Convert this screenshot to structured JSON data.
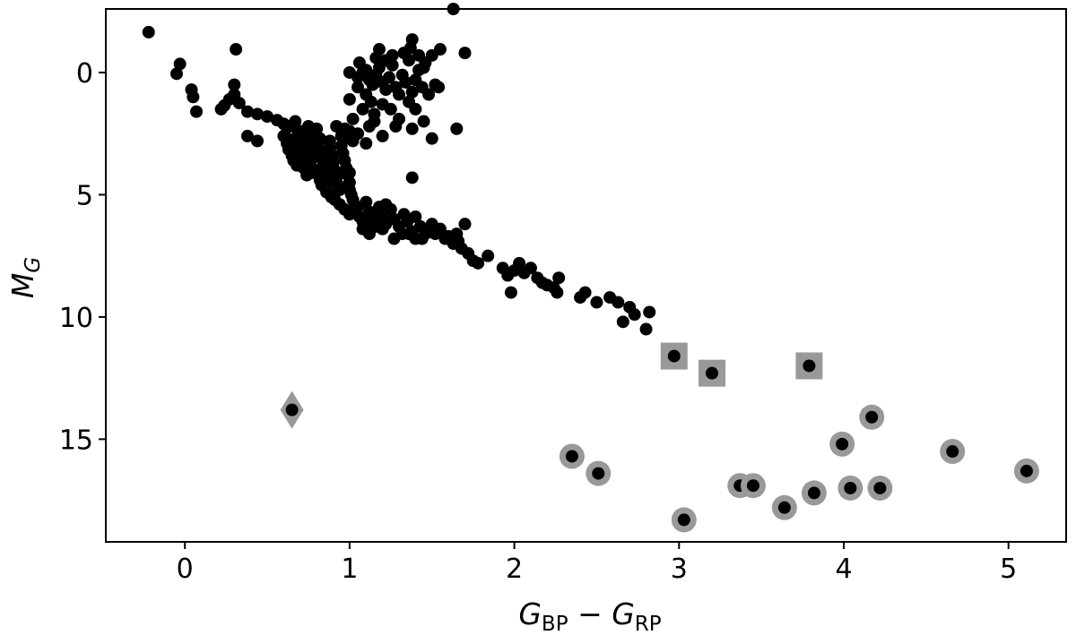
{
  "chart_data": {
    "type": "scatter",
    "title": "",
    "xlabel": {
      "main": "G",
      "sub1": "BP",
      "minus": " − ",
      "main2": "G",
      "sub2": "RP"
    },
    "ylabel": {
      "main": "M",
      "sub": "G"
    },
    "xlim": [
      -0.48,
      5.35
    ],
    "ylim": [
      19.2,
      -2.6
    ],
    "y_inverted": true,
    "grid": false,
    "legend": "none",
    "xticks": [
      0,
      1,
      2,
      3,
      4,
      5
    ],
    "yticks": [
      0,
      5,
      10,
      15
    ],
    "colors": {
      "point": "#000000",
      "highlight": "#999999"
    },
    "series": [
      {
        "marker": "circle",
        "color": "#000000",
        "points": [
          [
            -0.22,
            -1.65
          ],
          [
            -0.05,
            0.05
          ],
          [
            -0.03,
            -0.35
          ],
          [
            0.04,
            0.7
          ],
          [
            0.05,
            1.0
          ],
          [
            0.07,
            1.6
          ],
          [
            0.31,
            -0.95
          ],
          [
            0.3,
            0.5
          ],
          [
            0.3,
            0.9
          ],
          [
            0.27,
            1.1
          ],
          [
            0.24,
            1.35
          ],
          [
            0.22,
            1.5
          ],
          [
            0.33,
            1.25
          ],
          [
            0.38,
            1.6
          ],
          [
            0.44,
            1.7
          ],
          [
            0.5,
            1.8
          ],
          [
            0.56,
            1.95
          ],
          [
            0.6,
            2.1
          ],
          [
            0.62,
            2.25
          ],
          [
            0.38,
            2.6
          ],
          [
            0.44,
            2.8
          ],
          [
            0.6,
            2.6
          ],
          [
            0.62,
            2.9
          ],
          [
            0.63,
            3.15
          ],
          [
            0.65,
            3.4
          ],
          [
            0.66,
            3.6
          ],
          [
            0.68,
            3.8
          ],
          [
            0.7,
            2.4
          ],
          [
            0.72,
            2.7
          ],
          [
            0.72,
            3.0
          ],
          [
            0.74,
            3.3
          ],
          [
            0.75,
            3.6
          ],
          [
            0.77,
            3.9
          ],
          [
            0.78,
            4.1
          ],
          [
            0.8,
            2.3
          ],
          [
            0.8,
            2.6
          ],
          [
            0.81,
            2.9
          ],
          [
            0.82,
            3.2
          ],
          [
            0.83,
            3.5
          ],
          [
            0.84,
            3.8
          ],
          [
            0.85,
            4.0
          ],
          [
            0.86,
            4.3
          ],
          [
            0.87,
            4.5
          ],
          [
            0.88,
            2.8
          ],
          [
            0.88,
            3.1
          ],
          [
            0.9,
            3.4
          ],
          [
            0.9,
            3.7
          ],
          [
            0.91,
            4.0
          ],
          [
            0.92,
            4.3
          ],
          [
            0.93,
            4.6
          ],
          [
            0.94,
            4.8
          ],
          [
            0.95,
            2.6
          ],
          [
            0.95,
            3.0
          ],
          [
            0.96,
            3.3
          ],
          [
            0.97,
            3.6
          ],
          [
            0.98,
            3.9
          ],
          [
            0.99,
            4.2
          ],
          [
            1.0,
            4.5
          ],
          [
            1.0,
            4.8
          ],
          [
            1.01,
            5.0
          ],
          [
            1.02,
            5.2
          ],
          [
            0.7,
            3.5
          ],
          [
            0.72,
            3.9
          ],
          [
            0.74,
            4.2
          ],
          [
            0.76,
            3.2
          ],
          [
            0.79,
            3.45
          ],
          [
            0.83,
            4.6
          ],
          [
            0.86,
            4.9
          ],
          [
            0.89,
            5.1
          ],
          [
            0.92,
            2.2
          ],
          [
            0.97,
            2.3
          ],
          [
            1.0,
            2.4
          ],
          [
            1.02,
            2.8
          ],
          [
            0.64,
            2.2
          ],
          [
            0.67,
            2.0
          ],
          [
            0.69,
            2.5
          ],
          [
            0.71,
            2.9
          ],
          [
            0.73,
            3.3
          ],
          [
            0.76,
            3.7
          ],
          [
            0.79,
            4.0
          ],
          [
            0.82,
            4.4
          ],
          [
            0.85,
            4.7
          ],
          [
            0.88,
            4.95
          ],
          [
            0.91,
            5.2
          ],
          [
            0.94,
            5.4
          ],
          [
            0.97,
            5.6
          ],
          [
            1.0,
            5.8
          ],
          [
            1.03,
            5.5
          ],
          [
            1.06,
            5.9
          ],
          [
            1.08,
            6.1
          ],
          [
            1.1,
            5.3
          ],
          [
            1.12,
            5.7
          ],
          [
            1.14,
            6.0
          ],
          [
            1.16,
            6.3
          ],
          [
            1.18,
            5.5
          ],
          [
            1.2,
            5.9
          ],
          [
            1.22,
            6.2
          ],
          [
            1.25,
            5.6
          ],
          [
            1.27,
            6.0
          ],
          [
            1.3,
            6.3
          ],
          [
            1.33,
            5.8
          ],
          [
            1.35,
            6.1
          ],
          [
            1.38,
            6.5
          ],
          [
            1.4,
            5.9
          ],
          [
            1.43,
            6.3
          ],
          [
            1.46,
            6.6
          ],
          [
            1.5,
            6.2
          ],
          [
            1.52,
            6.6
          ],
          [
            1.55,
            6.4
          ],
          [
            1.58,
            6.8
          ],
          [
            1.6,
            6.7
          ],
          [
            1.63,
            7.0
          ],
          [
            1.66,
            6.9
          ],
          [
            1.68,
            7.2
          ],
          [
            1.7,
            6.2
          ],
          [
            1.65,
            6.6
          ],
          [
            1.72,
            7.4
          ],
          [
            1.75,
            7.7
          ],
          [
            1.78,
            7.8
          ],
          [
            1.84,
            7.5
          ],
          [
            1.93,
            8.0
          ],
          [
            1.96,
            8.3
          ],
          [
            1.98,
            9.0
          ],
          [
            2.0,
            8.1
          ],
          [
            2.03,
            7.8
          ],
          [
            2.06,
            8.2
          ],
          [
            2.1,
            8.0
          ],
          [
            2.14,
            8.4
          ],
          [
            2.17,
            8.6
          ],
          [
            2.2,
            8.7
          ],
          [
            2.24,
            8.8
          ],
          [
            2.26,
            9.0
          ],
          [
            2.27,
            8.4
          ],
          [
            2.4,
            9.2
          ],
          [
            2.43,
            9.0
          ],
          [
            2.5,
            9.4
          ],
          [
            2.58,
            9.2
          ],
          [
            2.63,
            9.4
          ],
          [
            2.66,
            10.2
          ],
          [
            2.7,
            9.6
          ],
          [
            2.73,
            9.9
          ],
          [
            2.8,
            10.5
          ],
          [
            2.82,
            9.8
          ],
          [
            1.08,
            6.4
          ],
          [
            1.12,
            6.6
          ],
          [
            1.2,
            6.4
          ],
          [
            1.27,
            6.8
          ],
          [
            1.36,
            6.6
          ],
          [
            1.44,
            6.8
          ],
          [
            1.05,
            0.2
          ],
          [
            1.08,
            0.0
          ],
          [
            1.1,
            -0.1
          ],
          [
            1.12,
            0.3
          ],
          [
            1.14,
            0.5
          ],
          [
            1.16,
            0.1
          ],
          [
            1.18,
            -0.2
          ],
          [
            1.2,
            0.4
          ],
          [
            1.22,
            0.7
          ],
          [
            1.24,
            0.2
          ],
          [
            1.26,
            -0.3
          ],
          [
            1.28,
            0.6
          ],
          [
            1.3,
            0.9
          ],
          [
            1.32,
            0.1
          ],
          [
            1.34,
            0.4
          ],
          [
            1.36,
            -0.5
          ],
          [
            1.38,
            0.8
          ],
          [
            1.4,
            0.3
          ],
          [
            1.42,
            -0.1
          ],
          [
            1.44,
            0.6
          ],
          [
            1.46,
            -0.4
          ],
          [
            1.48,
            0.9
          ],
          [
            1.5,
            -0.7
          ],
          [
            1.52,
            0.5
          ],
          [
            1.05,
            0.6
          ],
          [
            1.1,
            0.9
          ],
          [
            1.13,
            1.2
          ],
          [
            1.0,
            1.1
          ],
          [
            1.08,
            1.5
          ],
          [
            1.15,
            1.7
          ],
          [
            1.2,
            1.3
          ],
          [
            1.25,
            1.5
          ],
          [
            1.3,
            1.9
          ],
          [
            1.36,
            1.2
          ],
          [
            1.4,
            1.5
          ],
          [
            1.45,
            2.0
          ],
          [
            1.02,
            1.9
          ],
          [
            1.12,
            2.2
          ],
          [
            1.2,
            2.6
          ],
          [
            1.28,
            2.2
          ],
          [
            1.38,
            2.3
          ],
          [
            1.5,
            2.7
          ],
          [
            1.65,
            2.3
          ],
          [
            1.1,
            2.9
          ],
          [
            1.38,
            4.3
          ],
          [
            1.18,
            -0.95
          ],
          [
            1.38,
            -1.35
          ],
          [
            1.37,
            -1.0
          ],
          [
            1.55,
            -0.95
          ],
          [
            1.63,
            -2.6
          ],
          [
            1.7,
            -0.8
          ],
          [
            1.54,
            0.6
          ],
          [
            1.45,
            -0.2
          ],
          [
            1.42,
            -0.7
          ],
          [
            1.22,
            -0.5
          ],
          [
            1.26,
            -0.7
          ],
          [
            1.33,
            -0.8
          ],
          [
            1.06,
            -0.4
          ],
          [
            1.16,
            -0.6
          ],
          [
            1.0,
            0.0
          ],
          [
            0.98,
            2.6
          ],
          [
            1.05,
            2.5
          ],
          [
            1.15,
            2.0
          ],
          [
            0.67,
            2.7
          ],
          [
            0.75,
            2.2
          ],
          [
            0.8,
            3.1
          ],
          [
            0.85,
            3.3
          ],
          [
            0.9,
            3.9
          ],
          [
            0.95,
            4.1
          ],
          [
            1.0,
            4.1
          ],
          [
            1.05,
            5.5
          ],
          [
            1.1,
            6.2
          ],
          [
            1.15,
            5.8
          ],
          [
            1.22,
            5.4
          ],
          [
            1.32,
            6.6
          ],
          [
            1.4,
            6.8
          ],
          [
            1.48,
            6.4
          ],
          [
            0.62,
            2.7
          ],
          [
            0.66,
            3.0
          ],
          [
            0.7,
            3.2
          ],
          [
            0.74,
            2.6
          ],
          [
            0.78,
            3.0
          ],
          [
            0.82,
            2.7
          ],
          [
            0.86,
            3.6
          ],
          [
            0.9,
            4.4
          ]
        ]
      },
      {
        "marker": "square",
        "color": "#999999",
        "points": [
          [
            2.97,
            11.6
          ],
          [
            3.2,
            12.3
          ],
          [
            3.79,
            12.0
          ]
        ]
      },
      {
        "marker": "diamond",
        "color": "#999999",
        "points": [
          [
            0.65,
            13.8
          ]
        ]
      },
      {
        "marker": "ring",
        "color": "#999999",
        "points": [
          [
            2.35,
            15.7
          ],
          [
            2.51,
            16.4
          ],
          [
            3.03,
            18.3
          ],
          [
            3.37,
            16.9
          ],
          [
            3.45,
            16.9
          ],
          [
            3.64,
            17.8
          ],
          [
            3.82,
            17.2
          ],
          [
            3.99,
            15.2
          ],
          [
            4.04,
            17.0
          ],
          [
            4.17,
            14.1
          ],
          [
            4.22,
            17.0
          ],
          [
            4.66,
            15.5
          ],
          [
            5.11,
            16.3
          ]
        ]
      }
    ]
  }
}
